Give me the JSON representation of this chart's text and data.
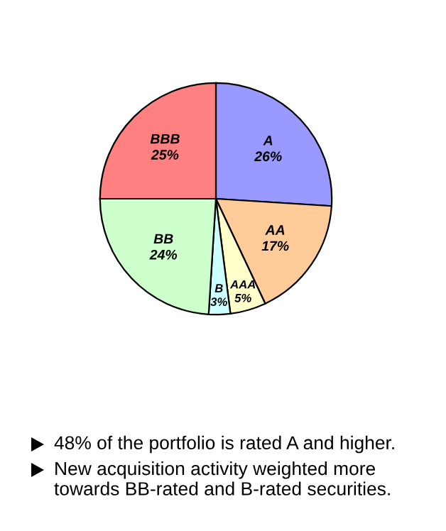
{
  "chart_data": {
    "type": "pie",
    "categories": [
      "A",
      "AA",
      "AAA",
      "B",
      "BB",
      "BBB"
    ],
    "values": [
      26,
      17,
      5,
      3,
      24,
      25
    ],
    "value_labels": [
      "26%",
      "17%",
      "5%",
      "3%",
      "24%",
      "25%"
    ],
    "colors": [
      "#9999ff",
      "#ffcc99",
      "#ffffcc",
      "#ccffff",
      "#ccffcc",
      "#ff8080"
    ],
    "annotations": [
      "48% of the portfolio is rated A and higher.",
      "New acquisition activity weighted more towards BB-rated and B-rated securities."
    ]
  }
}
